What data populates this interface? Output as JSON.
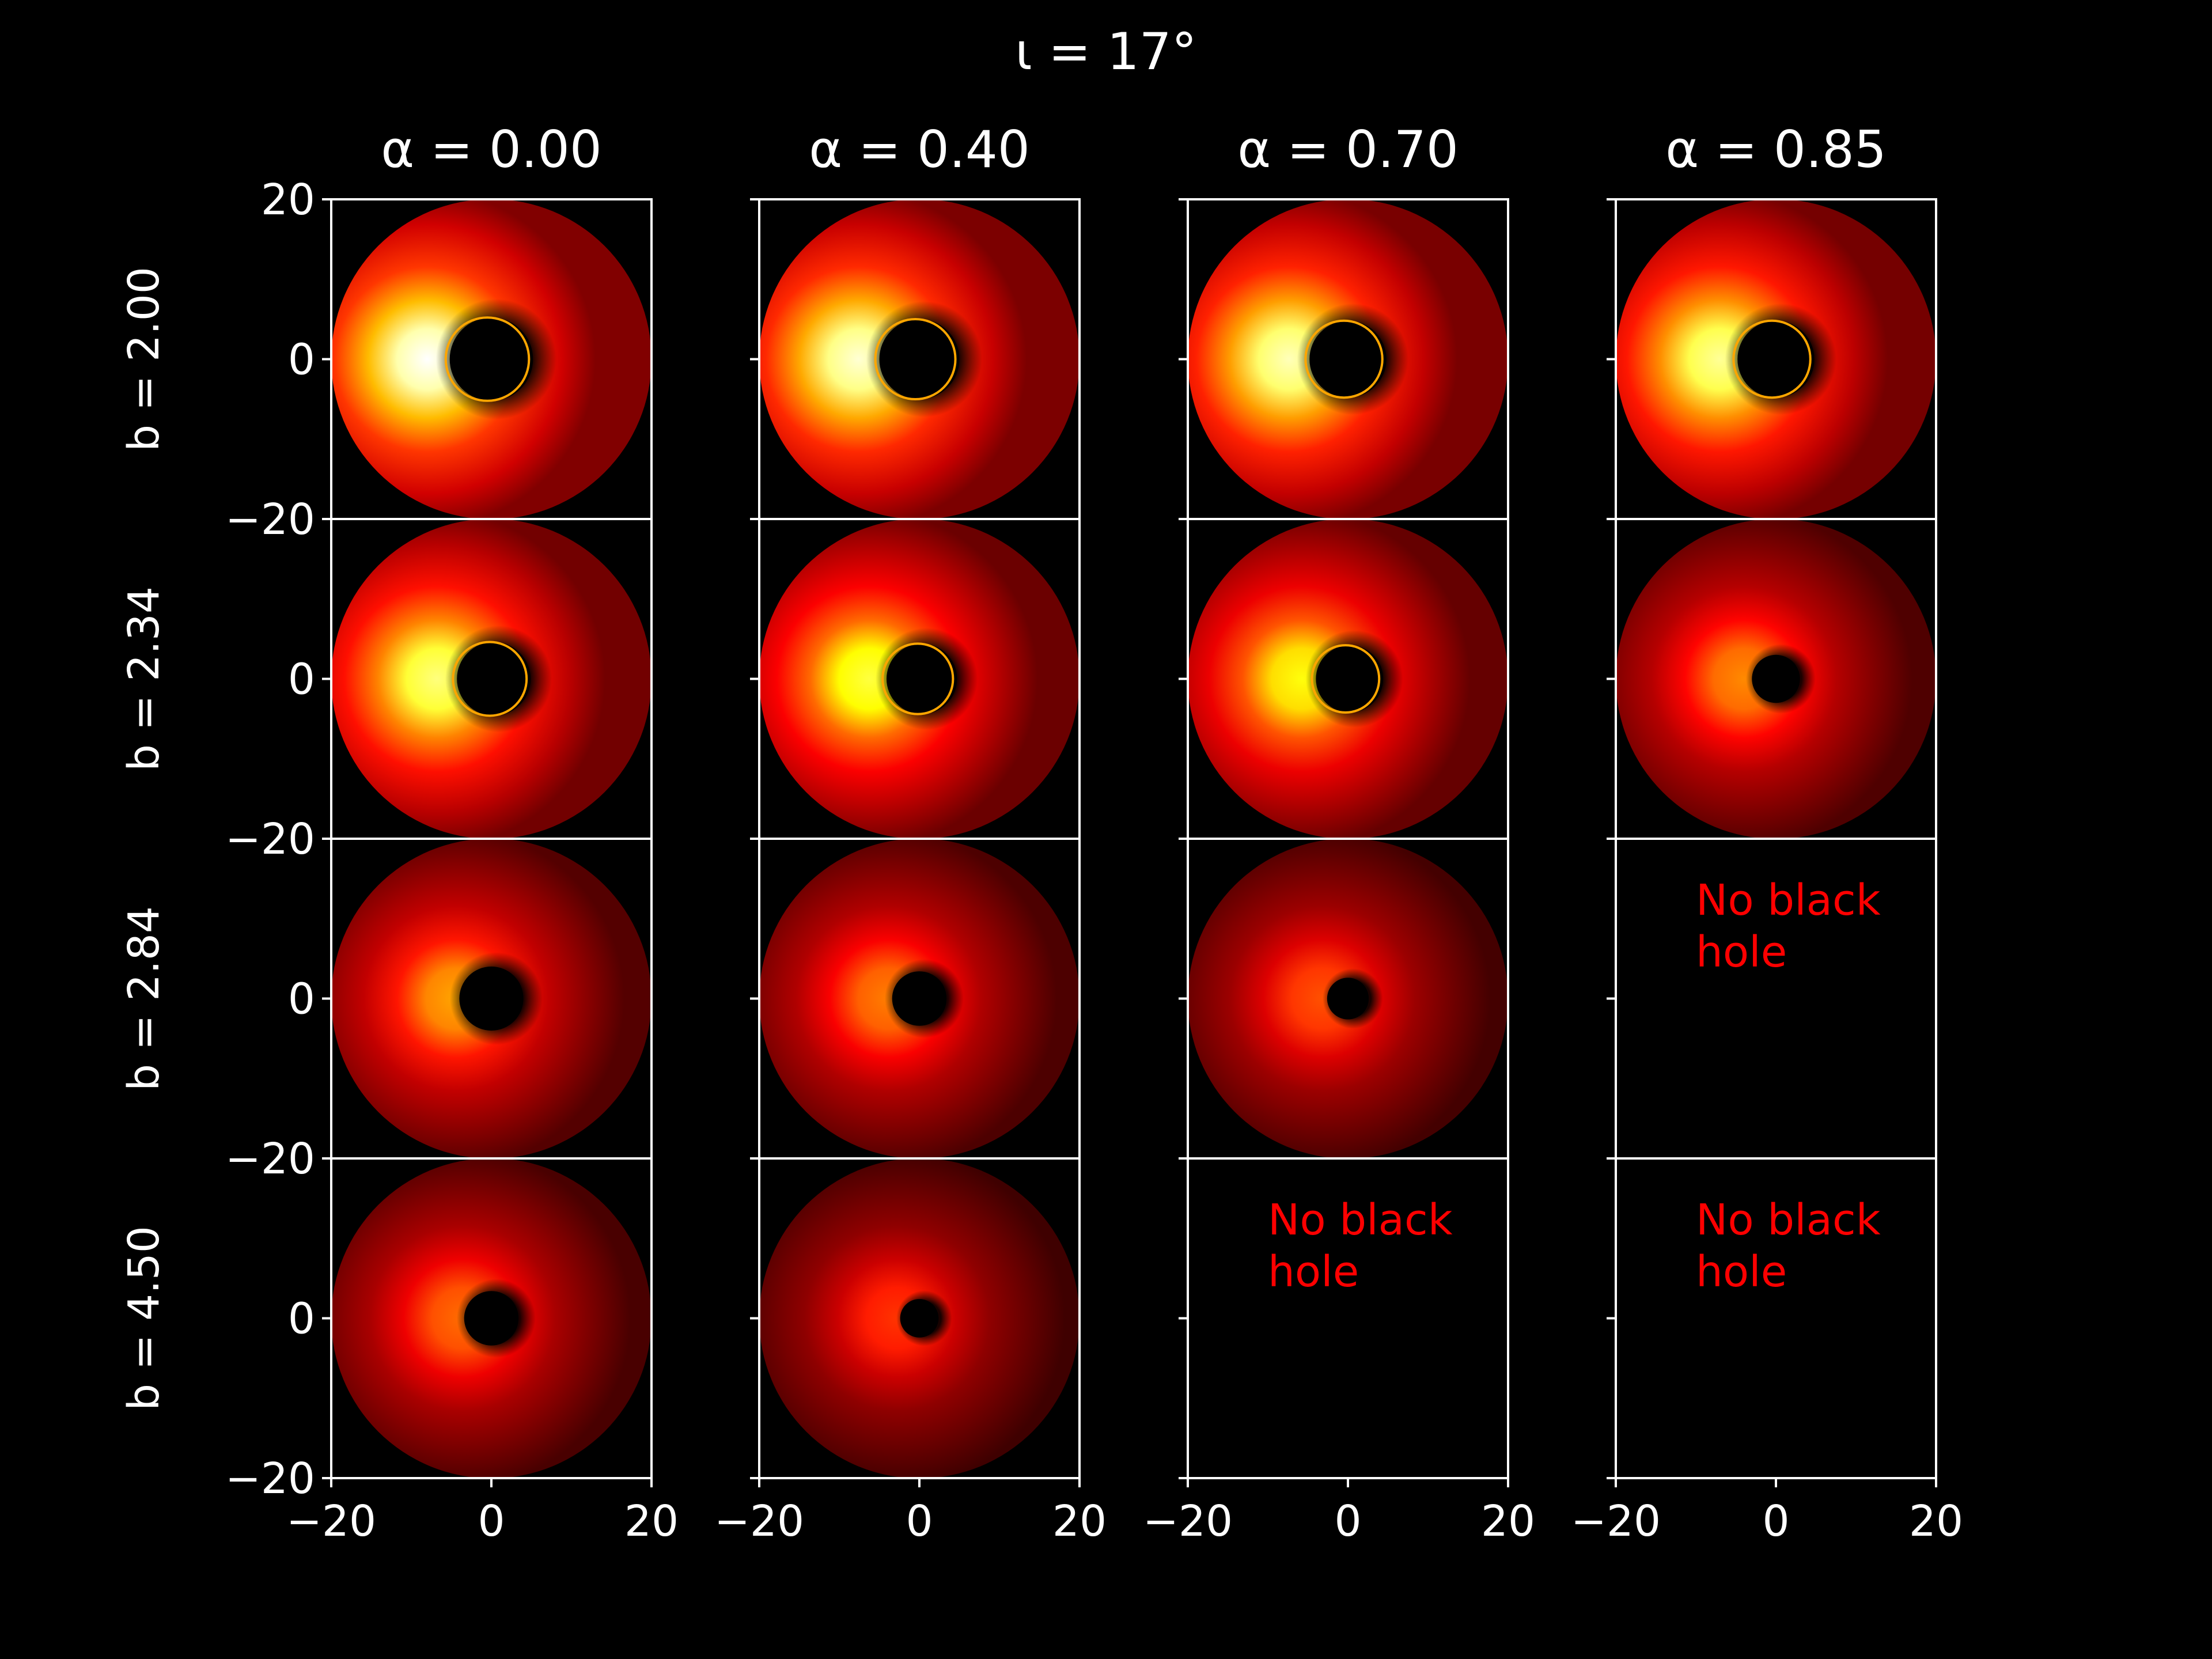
{
  "figure": {
    "suptitle": "ι = 17°",
    "background": "#000000",
    "foreground": "#ffffff",
    "missing_text_color": "#ff0000"
  },
  "chart_data": {
    "type": "heatmap",
    "title": "ι = 17°",
    "colormap": "hot",
    "grid": false,
    "xlim": [
      -20,
      20
    ],
    "ylim": [
      -20,
      20
    ],
    "x_ticks": [
      "−20",
      "0",
      "20"
    ],
    "y_ticks": [
      "20",
      "0",
      "−20"
    ],
    "columns": [
      {
        "label": "α = 0.00",
        "value": 0.0
      },
      {
        "label": "α = 0.40",
        "value": 0.4
      },
      {
        "label": "α = 0.70",
        "value": 0.7
      },
      {
        "label": "α = 0.85",
        "value": 0.85
      }
    ],
    "rows": [
      {
        "label": "b = 2.00",
        "value": 2.0
      },
      {
        "label": "b = 2.34",
        "value": 2.34
      },
      {
        "label": "b = 2.84",
        "value": 2.84
      },
      {
        "label": "b = 4.50",
        "value": 4.5
      }
    ],
    "no_black_hole_label": "No black\nhole",
    "panels": [
      [
        {
          "shadow_radius": 5.2,
          "shadow_x": 0.0,
          "ring": true,
          "brightness": 1.0
        },
        {
          "shadow_radius": 5.0,
          "shadow_x": 0.0,
          "ring": true,
          "brightness": 0.95
        },
        {
          "shadow_radius": 4.8,
          "shadow_x": 0.0,
          "ring": true,
          "brightness": 0.92
        },
        {
          "shadow_radius": 4.8,
          "shadow_x": 0.0,
          "ring": true,
          "brightness": 0.88
        }
      ],
      [
        {
          "shadow_radius": 4.6,
          "shadow_x": 0.3,
          "ring": true,
          "brightness": 0.85
        },
        {
          "shadow_radius": 4.4,
          "shadow_x": 0.3,
          "ring": true,
          "brightness": 0.78
        },
        {
          "shadow_radius": 4.2,
          "shadow_x": 0.2,
          "ring": true,
          "brightness": 0.72
        },
        {
          "shadow_radius": 3.0,
          "shadow_x": 0.0,
          "ring": false,
          "brightness": 0.5
        }
      ],
      [
        {
          "shadow_radius": 4.0,
          "shadow_x": 0.0,
          "ring": false,
          "brightness": 0.55
        },
        {
          "shadow_radius": 3.4,
          "shadow_x": 0.0,
          "ring": false,
          "brightness": 0.48
        },
        {
          "shadow_radius": 2.6,
          "shadow_x": 0.0,
          "ring": false,
          "brightness": 0.4
        },
        null
      ],
      [
        {
          "shadow_radius": 3.4,
          "shadow_x": 0.0,
          "ring": false,
          "brightness": 0.45
        },
        {
          "shadow_radius": 2.4,
          "shadow_x": 0.0,
          "ring": false,
          "brightness": 0.35
        },
        null,
        null
      ]
    ]
  }
}
